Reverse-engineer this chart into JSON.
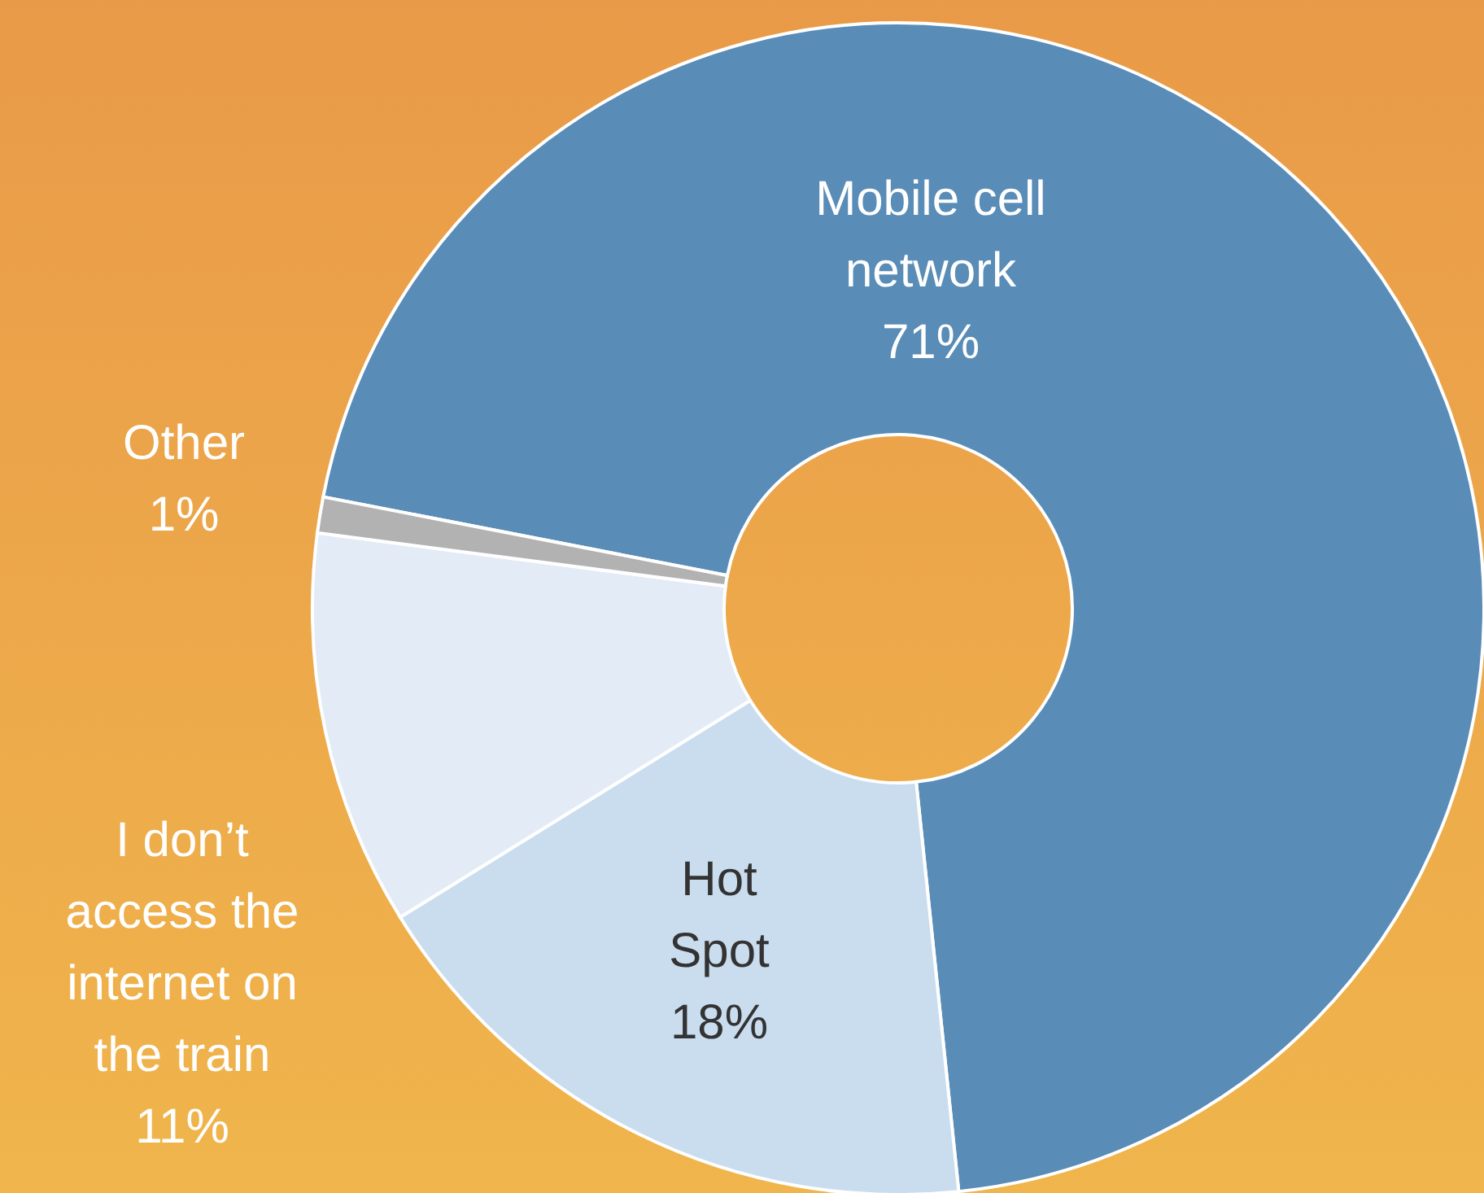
{
  "chart_data": {
    "type": "donut",
    "categories": [
      "Mobile cell network",
      "Hot Spot",
      "I don’t access the internet on the train",
      "Other"
    ],
    "values": [
      71,
      18,
      11,
      1
    ],
    "colors": [
      "#598cb6",
      "#c9ddef",
      "#e3ebf6",
      "#b2b2b2"
    ],
    "value_labels": [
      "71%",
      "18%",
      "11%",
      "1%"
    ]
  }
}
